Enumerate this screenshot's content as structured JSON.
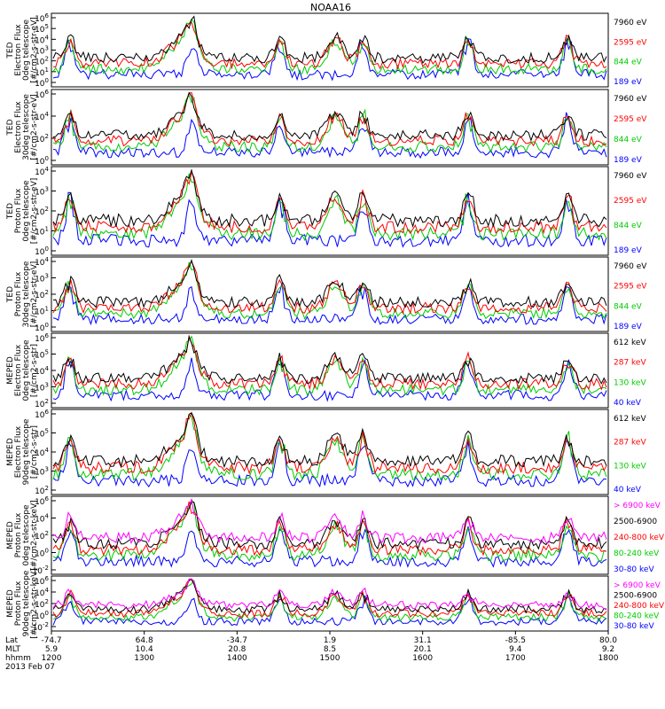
{
  "chart_data": {
    "type": "line",
    "title": "NOAA16",
    "panels": [
      {
        "ylabel": [
          "TED",
          "Electron Flux",
          "0deg telescope",
          "[#/cm2-s-str-eV]"
        ],
        "yticks": [
          "10^6",
          "10^5",
          "10^4",
          "10^3",
          "10^2",
          "10^1",
          "10^0"
        ],
        "legend": [
          {
            "name": "7960 eV",
            "color": "#000000"
          },
          {
            "name": "2595 eV",
            "color": "#ff0000"
          },
          {
            "name": "844 eV",
            "color": "#00cc00"
          },
          {
            "name": "189 eV",
            "color": "#0000ff"
          }
        ]
      },
      {
        "ylabel": [
          "TED",
          "Electron Flux",
          "30deg telescope",
          "[#/cm2-s-str-eV]"
        ],
        "yticks": [
          "10^6",
          "10^4",
          "10^2",
          "10^0"
        ],
        "legend": [
          {
            "name": "7960 eV",
            "color": "#000000"
          },
          {
            "name": "2595 eV",
            "color": "#ff0000"
          },
          {
            "name": "844 eV",
            "color": "#00cc00"
          },
          {
            "name": "189 eV",
            "color": "#0000ff"
          }
        ]
      },
      {
        "ylabel": [
          "TED",
          "Proton Flux",
          "0deg telescope",
          "[#/cm2-s-str-eV]"
        ],
        "yticks": [
          "10^4",
          "10^3",
          "10^2",
          "10^1",
          "10^0"
        ],
        "legend": [
          {
            "name": "7960 eV",
            "color": "#000000"
          },
          {
            "name": "2595 eV",
            "color": "#ff0000"
          },
          {
            "name": "844 eV",
            "color": "#00cc00"
          },
          {
            "name": "189 eV",
            "color": "#0000ff"
          }
        ]
      },
      {
        "ylabel": [
          "TED",
          "Proton Flux",
          "30deg telescope",
          "[#/cm2-s-str-eV]"
        ],
        "yticks": [
          "10^4",
          "10^3",
          "10^2",
          "10^1",
          "10^0"
        ],
        "legend": [
          {
            "name": "7960 eV",
            "color": "#000000"
          },
          {
            "name": "2595 eV",
            "color": "#ff0000"
          },
          {
            "name": "844 eV",
            "color": "#00cc00"
          },
          {
            "name": "189 eV",
            "color": "#0000ff"
          }
        ]
      },
      {
        "ylabel": [
          "MEPED",
          "Electron Flux",
          "0deg telescope",
          "[#/cm2-s-str]"
        ],
        "yticks": [
          "10^6",
          "10^5",
          "10^4",
          "10^3",
          "10^2"
        ],
        "legend": [
          {
            "name": "612 keV",
            "color": "#000000"
          },
          {
            "name": "287 keV",
            "color": "#ff0000"
          },
          {
            "name": "130 keV",
            "color": "#00cc00"
          },
          {
            "name": "40 keV",
            "color": "#0000ff"
          }
        ]
      },
      {
        "ylabel": [
          "MEPED",
          "Electron Flux",
          "90deg telescope",
          "[#/cm2-s-str]"
        ],
        "yticks": [
          "10^6",
          "10^5",
          "10^4",
          "10^3",
          "10^2"
        ],
        "legend": [
          {
            "name": "612 keV",
            "color": "#000000"
          },
          {
            "name": "287 keV",
            "color": "#ff0000"
          },
          {
            "name": "130 keV",
            "color": "#00cc00"
          },
          {
            "name": "40 keV",
            "color": "#0000ff"
          }
        ]
      },
      {
        "ylabel": [
          "MEPED",
          "Proton Flux",
          "0deg telescope",
          "[#/cm2-s-str-keV]"
        ],
        "yticks": [
          "10^6",
          "10^4",
          "10^2",
          "10^0",
          "10^-2"
        ],
        "legend": [
          {
            "name": "> 6900 keV",
            "color": "#ff00ff"
          },
          {
            "name": "2500-6900",
            "color": "#000000"
          },
          {
            "name": "240-800 keV",
            "color": "#ff0000"
          },
          {
            "name": "80-240 keV",
            "color": "#00cc00"
          },
          {
            "name": "30-80 keV",
            "color": "#0000ff"
          }
        ]
      },
      {
        "ylabel": [
          "MEPED",
          "Proton Flux",
          "90deg telescope",
          "[#/cm2-s-str-keV]"
        ],
        "yticks": [
          "10^6",
          "10^4",
          "10^2",
          "10^0",
          "10^-2"
        ],
        "legend": [
          {
            "name": "> 6900 keV",
            "color": "#ff00ff"
          },
          {
            "name": "2500-6900",
            "color": "#000000"
          },
          {
            "name": "240-800 keV",
            "color": "#ff0000"
          },
          {
            "name": "80-240 keV",
            "color": "#00cc00"
          },
          {
            "name": "30-80 keV",
            "color": "#0000ff"
          }
        ]
      }
    ],
    "xaxis": {
      "row_labels": [
        "Lat",
        "MLT",
        "hhmm",
        "2013 Feb 07"
      ],
      "ticks": [
        {
          "lat": "-74.7",
          "mlt": "5.9",
          "hhmm": "1200"
        },
        {
          "lat": "64.8",
          "mlt": "10.4",
          "hhmm": "1300"
        },
        {
          "lat": "-34.7",
          "mlt": "20.8",
          "hhmm": "1400"
        },
        {
          "lat": "1.9",
          "mlt": "8.5",
          "hhmm": "1500"
        },
        {
          "lat": "31.1",
          "mlt": "20.1",
          "hhmm": "1600"
        },
        {
          "lat": "-85.5",
          "mlt": "9.4",
          "hhmm": "1700"
        },
        {
          "lat": "80.0",
          "mlt": "9.2",
          "hhmm": "1800"
        }
      ]
    }
  }
}
